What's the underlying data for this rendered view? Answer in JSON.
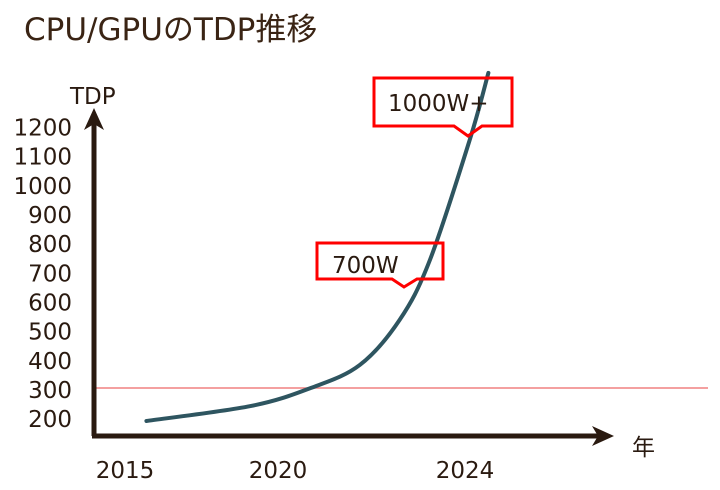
{
  "chart_data": {
    "type": "line",
    "title": "CPU/GPUのTDP推移",
    "ylabel": "TDP",
    "xlabel": "年",
    "y_ticks": [
      200,
      300,
      400,
      500,
      600,
      700,
      800,
      900,
      1000,
      1100,
      1200
    ],
    "x_ticks": [
      2015,
      2020,
      2024
    ],
    "highlight_tick": 300,
    "reference_line": {
      "value": 300,
      "color": "#f08080"
    },
    "series": [
      {
        "x": [
          2015.7,
          2019.1,
          2020.7,
          2021.75,
          2022.6,
          2023.25,
          2024.1,
          2024.5
        ],
        "y": [
          187,
          238,
          300,
          379,
          533,
          739,
          1150,
          1380
        ],
        "color": "#2e5560"
      }
    ],
    "annotations": [
      {
        "text": "1000W+",
        "color": "#ff0000"
      },
      {
        "text": "700W",
        "color": "#ff0000"
      }
    ],
    "grid": false
  }
}
